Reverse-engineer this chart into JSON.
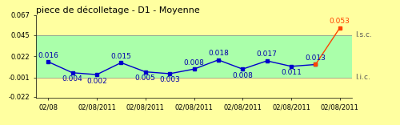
{
  "title": "piece de décolletage - D1 - Moyenne",
  "ylim": [
    -0.023,
    0.067
  ],
  "yticks": [
    -0.022,
    -0.001,
    0.022,
    0.045,
    0.067
  ],
  "ytick_labels": [
    "-0.022",
    "-0.001",
    "0.022",
    "0.045",
    "0.067"
  ],
  "lsc": 0.045,
  "lic": -0.001,
  "background_outer": "#FFFFA0",
  "background_inner": "#AAFFAA",
  "x_values": [
    0,
    1,
    2,
    3,
    4,
    5,
    6,
    7,
    8,
    9,
    10,
    11,
    12
  ],
  "y_values": [
    0.016,
    0.004,
    0.002,
    0.015,
    0.005,
    0.003,
    0.008,
    0.018,
    0.008,
    0.017,
    0.011,
    0.013,
    0.053
  ],
  "point_labels": [
    "0.016",
    "0.004",
    "0.002",
    "0.015",
    "0.005",
    "0.003",
    "0.008",
    "0.018",
    "0.008",
    "0.017",
    "0.011",
    "0.013",
    "0.053"
  ],
  "alarm_idx": 12,
  "normal_color": "#0000CC",
  "alarm_color": "#FF4400",
  "line_color": "#0000CC",
  "alarm_line_color": "#FF4400",
  "label_color_normal": "#0000AA",
  "label_color_alarm": "#FF4400",
  "lsc_label": "l.s.c.",
  "lic_label": "l.i.c.",
  "x_tick_labels": [
    "02/08",
    "02/08/2011",
    "02/08/2011",
    "02/08/2011",
    "02/08/2011",
    "02/08/2011",
    "02/08/2011"
  ],
  "x_tick_positions": [
    0,
    2,
    4,
    6,
    8,
    10,
    12
  ],
  "title_fontsize": 8,
  "tick_fontsize": 6,
  "label_fontsize": 6.5
}
